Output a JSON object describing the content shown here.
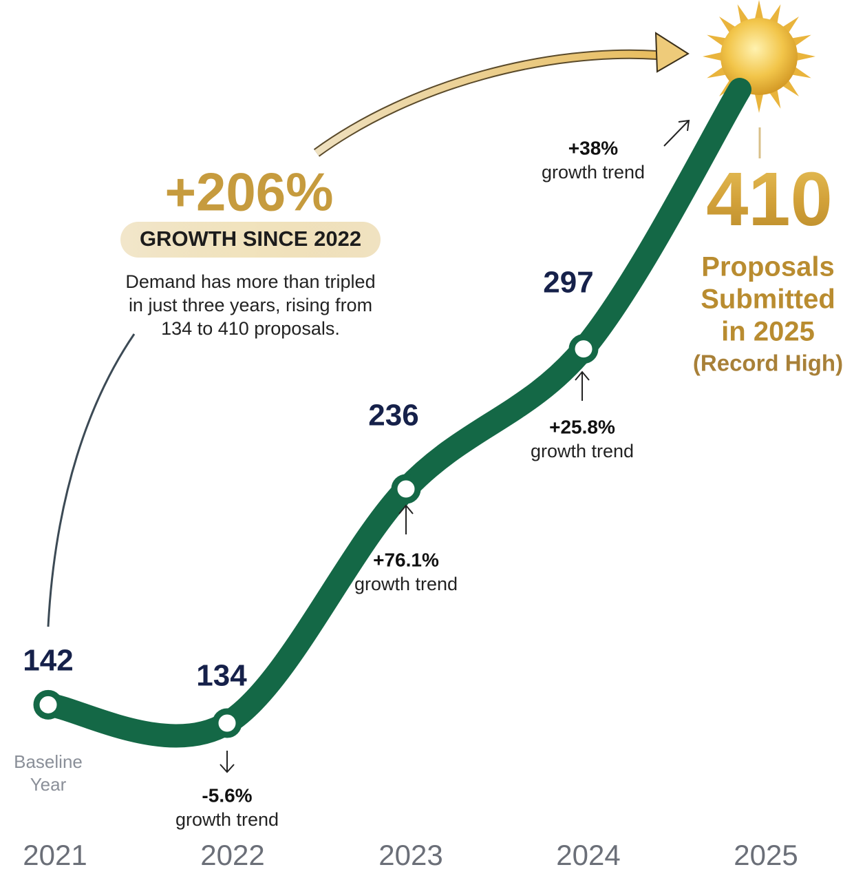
{
  "chart_data": {
    "type": "line",
    "title": "+206%",
    "subtitle": "GROWTH SINCE 2022",
    "description": [
      "Demand has more than tripled",
      "in just three years, rising from",
      "134 to 410 proposals."
    ],
    "categories": [
      "2021",
      "2022",
      "2023",
      "2024",
      "2025"
    ],
    "values": [
      142,
      134,
      236,
      297,
      410
    ],
    "color": "#146846",
    "baseline_note": [
      "Baseline",
      "Year"
    ],
    "highlight_note": [
      "Proposals",
      "Submitted",
      "in 2025",
      "(Record High)"
    ],
    "annotations": [
      {
        "text": "-5.6%",
        "note": "growth trend"
      },
      {
        "text": "+76.1%",
        "note": "growth trend"
      },
      {
        "text": "+25.8%",
        "note": "growth trend"
      },
      {
        "text": "+38%",
        "note": "growth trend"
      }
    ]
  }
}
